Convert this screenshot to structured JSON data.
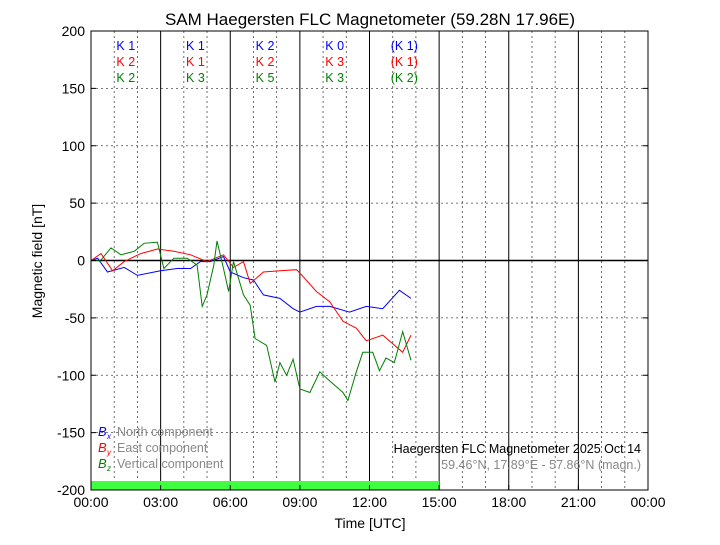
{
  "chart_data": {
    "type": "line",
    "title": "SAM Haegersten FLC Magnetometer (59.28N 17.96E)",
    "xlabel": "Time [UTC]",
    "ylabel": "Magnetic field [nT]",
    "xlim": [
      0,
      24
    ],
    "ylim": [
      -200,
      200
    ],
    "x_ticks": [
      "00:00",
      "03:00",
      "06:00",
      "09:00",
      "12:00",
      "15:00",
      "18:00",
      "21:00",
      "00:00"
    ],
    "y_ticks": [
      200,
      150,
      100,
      50,
      0,
      -50,
      -100,
      -150,
      -200
    ],
    "grid": true,
    "data_coverage_hours": [
      0,
      15
    ],
    "coverage_color": "#40ff40",
    "series": [
      {
        "name": "North component",
        "symbol": "B",
        "sub": "x",
        "color": "#0000ff",
        "x": [
          0,
          0.29,
          0.71,
          1.43,
          2,
          3,
          3.71,
          4.29,
          4.71,
          5.14,
          5.71,
          6,
          6.57,
          7,
          7.43,
          8.14,
          8.71,
          9,
          9.71,
          10.29,
          11.14,
          11.86,
          12.57,
          13.29,
          13.79
        ],
        "y": [
          0,
          2,
          -10,
          -6,
          -13,
          -9,
          -7,
          -7,
          -1,
          -1,
          3.5,
          -10,
          -15,
          -17,
          -30,
          -33,
          -42,
          -45,
          -40,
          -40,
          -45,
          -40,
          -42,
          -26,
          -33
        ]
      },
      {
        "name": "East component",
        "symbol": "B",
        "sub": "y",
        "color": "#ff0000",
        "x": [
          0,
          0.43,
          0.93,
          1.43,
          2.14,
          2.86,
          3.57,
          4.29,
          5,
          5.71,
          6.14,
          6.57,
          6.86,
          7.43,
          8.14,
          8.86,
          9.14,
          9.71,
          10.29,
          10.86,
          11.43,
          11.86,
          12.57,
          13.43,
          13.79
        ],
        "y": [
          0,
          6,
          -9,
          -1,
          6,
          10,
          8,
          5,
          -1,
          5,
          -6,
          -1,
          -20,
          -10,
          -9,
          -8,
          -14,
          -27,
          -36,
          -53,
          -59,
          -70,
          -65,
          -80,
          -65
        ]
      },
      {
        "name": "Vertical component",
        "symbol": "B",
        "sub": "z",
        "color": "#008000",
        "x": [
          0,
          0.43,
          0.86,
          1.29,
          1.86,
          2.29,
          2.86,
          3.14,
          3.57,
          4.14,
          4.57,
          4.79,
          5,
          5.29,
          5.43,
          5.71,
          5.93,
          6.14,
          6.57,
          6.86,
          7.07,
          7.57,
          7.93,
          8.14,
          8.43,
          8.71,
          9,
          9.43,
          9.86,
          10.29,
          10.86,
          11.07,
          11.43,
          11.71,
          12.14,
          12.43,
          12.71,
          13.07,
          13.43,
          13.79
        ],
        "y": [
          0,
          0.5,
          11,
          5,
          8,
          15,
          16,
          -7,
          2,
          2,
          -4,
          -40,
          -30,
          -4,
          17,
          -7,
          -27,
          -1,
          -30,
          -39,
          -68,
          -74,
          -106,
          -89,
          -100,
          -86,
          -112,
          -115,
          -97,
          -105,
          -115,
          -122,
          -97,
          -80,
          -80,
          -96,
          -85,
          -89,
          -62,
          -87
        ]
      }
    ],
    "k_indices": {
      "x_hours": [
        1.5,
        4.5,
        7.5,
        10.5,
        13.5
      ],
      "rows": [
        {
          "color": "#0000ff",
          "labels": [
            "K 1",
            "K 1",
            "K 2",
            "K 0",
            "(K 1)"
          ]
        },
        {
          "color": "#ff0000",
          "labels": [
            "K 2",
            "K 1",
            "K 2",
            "K 3",
            "(K 1)"
          ]
        },
        {
          "color": "#008000",
          "labels": [
            "K 2",
            "K 3",
            "K 5",
            "K 3",
            "(K 2)"
          ]
        }
      ]
    },
    "annotations": {
      "station": "Haegersten FLC Magnetometer 2025 Oct 14",
      "coords": "59.46°N, 17.89°E - 57.86°N (magn.)"
    }
  }
}
